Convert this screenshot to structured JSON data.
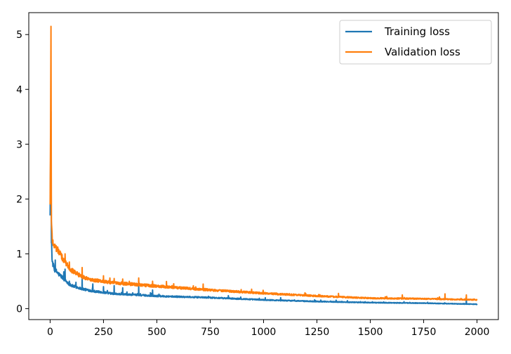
{
  "chart_data": {
    "type": "line",
    "title": "",
    "xlabel": "",
    "ylabel": "",
    "xlim": [
      -100,
      2100
    ],
    "ylim": [
      -0.2,
      5.4
    ],
    "xticks": [
      0,
      250,
      500,
      750,
      1000,
      1250,
      1500,
      1750,
      2000
    ],
    "yticks": [
      0,
      1,
      2,
      3,
      4,
      5
    ],
    "grid": false,
    "legend": {
      "position": "upper right"
    },
    "series": [
      {
        "name": "Training loss",
        "color": "#1f77b4",
        "anchors": [
          [
            0,
            1.7
          ],
          [
            2,
            2.7
          ],
          [
            4,
            3.6
          ],
          [
            6,
            1.2
          ],
          [
            10,
            0.85
          ],
          [
            20,
            0.72
          ],
          [
            40,
            0.63
          ],
          [
            60,
            0.56
          ],
          [
            80,
            0.48
          ],
          [
            100,
            0.42
          ],
          [
            150,
            0.36
          ],
          [
            200,
            0.32
          ],
          [
            300,
            0.27
          ],
          [
            400,
            0.25
          ],
          [
            500,
            0.23
          ],
          [
            750,
            0.2
          ],
          [
            1000,
            0.16
          ],
          [
            1250,
            0.13
          ],
          [
            1500,
            0.11
          ],
          [
            1750,
            0.1
          ],
          [
            2000,
            0.08
          ]
        ],
        "spikes": [
          [
            70,
            0.72
          ],
          [
            90,
            0.5
          ],
          [
            150,
            0.55
          ],
          [
            200,
            0.45
          ],
          [
            250,
            0.4
          ],
          [
            300,
            0.42
          ],
          [
            340,
            0.38
          ],
          [
            415,
            0.42
          ],
          [
            480,
            0.34
          ],
          [
            1080,
            0.2
          ],
          [
            1950,
            0.18
          ]
        ]
      },
      {
        "name": "Validation loss",
        "color": "#ff7f0e",
        "anchors": [
          [
            0,
            1.9
          ],
          [
            2,
            3.2
          ],
          [
            4,
            5.15
          ],
          [
            6,
            1.6
          ],
          [
            10,
            1.25
          ],
          [
            20,
            1.15
          ],
          [
            40,
            1.05
          ],
          [
            60,
            0.9
          ],
          [
            80,
            0.8
          ],
          [
            100,
            0.7
          ],
          [
            150,
            0.58
          ],
          [
            200,
            0.52
          ],
          [
            300,
            0.47
          ],
          [
            400,
            0.44
          ],
          [
            500,
            0.41
          ],
          [
            750,
            0.34
          ],
          [
            1000,
            0.28
          ],
          [
            1250,
            0.23
          ],
          [
            1500,
            0.19
          ],
          [
            1750,
            0.18
          ],
          [
            2000,
            0.16
          ]
        ],
        "spikes": [
          [
            70,
            1.0
          ],
          [
            90,
            0.85
          ],
          [
            150,
            0.75
          ],
          [
            250,
            0.6
          ],
          [
            280,
            0.56
          ],
          [
            300,
            0.55
          ],
          [
            340,
            0.54
          ],
          [
            415,
            0.56
          ],
          [
            480,
            0.5
          ],
          [
            1650,
            0.25
          ],
          [
            1850,
            0.27
          ],
          [
            1950,
            0.25
          ]
        ]
      }
    ]
  }
}
